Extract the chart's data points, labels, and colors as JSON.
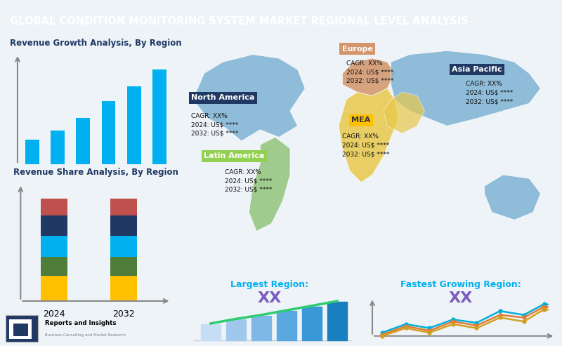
{
  "title": "GLOBAL CONDITION MONITORING SYSTEM MARKET REGIONAL LEVEL ANALYSIS",
  "title_bg": "#2c3e55",
  "title_color": "#ffffff",
  "bg_color": "#eef3f8",
  "bar_chart_title": "Revenue Growth Analysis, By Region",
  "bar_values": [
    1.0,
    1.4,
    1.9,
    2.6,
    3.2,
    3.9
  ],
  "bar_color": "#00b0f0",
  "stacked_title": "Revenue Share Analysis, By Region",
  "stacked_years": [
    "2024",
    "2032"
  ],
  "stacked_colors": [
    "#ffc000",
    "#4e7d3a",
    "#00b0f0",
    "#1f3864",
    "#c0504d"
  ],
  "stacked_values": [
    0.22,
    0.17,
    0.18,
    0.18,
    0.15
  ],
  "dark_blue": "#1f3864",
  "accent_cyan": "#00b0f0",
  "gold": "#ffc000",
  "green": "#92d050",
  "orange_tan": "#d4956a",
  "map_base": "#7fb3d3",
  "na_color": "#7fb3d3",
  "europe_color": "#d4956a",
  "asia_color": "#7fb3d3",
  "latam_color": "#92c47d",
  "mea_color": "#e8c84a",
  "largest_label": "Largest Region:",
  "fastest_label": "Fastest Growing Region:",
  "region_value": "XX"
}
